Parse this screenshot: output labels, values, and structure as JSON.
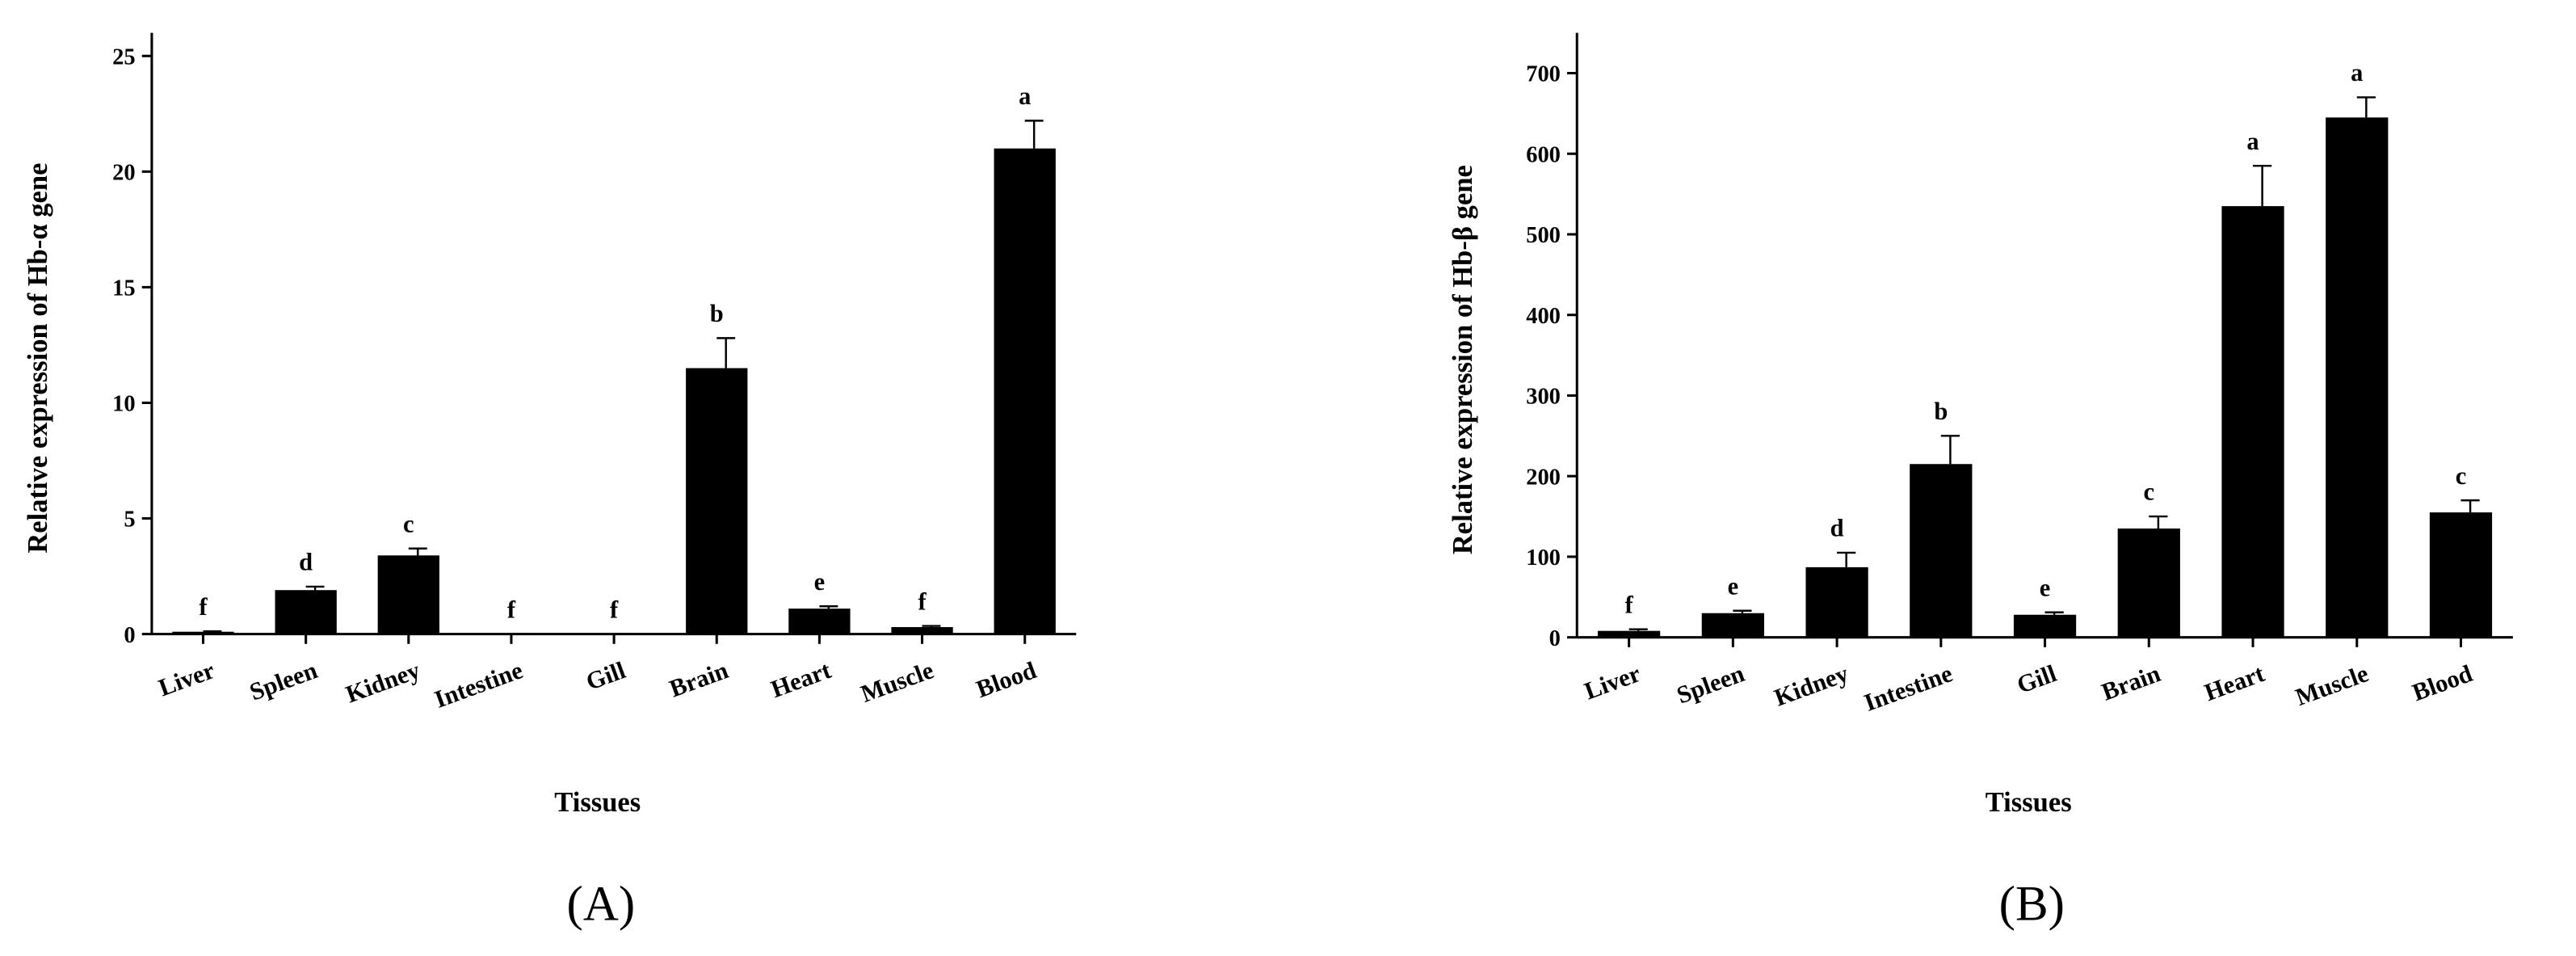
{
  "chart_data": [
    {
      "type": "bar",
      "panel_label": "(A)",
      "x_label": "Tissues",
      "y_label": "Relative expression of Hb-α gene",
      "categories": [
        "Liver",
        "Spleen",
        "Kidney",
        "Intestine",
        "Gill",
        "Brain",
        "Heart",
        "Muscle",
        "Blood"
      ],
      "values": [
        0.1,
        1.9,
        3.4,
        0,
        0,
        11.5,
        1.1,
        0.3,
        21.0
      ],
      "errors": [
        0.02,
        0.15,
        0.3,
        0,
        0,
        1.3,
        0.1,
        0.05,
        1.2
      ],
      "letters": [
        "f",
        "d",
        "c",
        "f",
        "f",
        "b",
        "e",
        "f",
        "a"
      ],
      "color": "#000000",
      "ylim": [
        0,
        26
      ],
      "yticks": [
        0,
        5,
        10,
        15,
        20,
        25
      ]
    },
    {
      "type": "bar",
      "panel_label": "(B)",
      "x_label": "Tissues",
      "y_label": "Relative expression of Hb-β gene",
      "categories": [
        "Liver",
        "Spleen",
        "Kidney",
        "Intestine",
        "Gill",
        "Brain",
        "Heart",
        "Muscle",
        "Blood"
      ],
      "values": [
        8,
        30,
        87,
        215,
        28,
        135,
        535,
        645,
        155
      ],
      "errors": [
        2,
        3,
        18,
        35,
        3,
        15,
        50,
        25,
        15
      ],
      "letters": [
        "f",
        "e",
        "d",
        "b",
        "e",
        "c",
        "a",
        "a",
        "c"
      ],
      "color": "#000000",
      "ylim": [
        0,
        750
      ],
      "yticks": [
        0,
        100,
        200,
        300,
        400,
        500,
        600,
        700
      ]
    }
  ]
}
